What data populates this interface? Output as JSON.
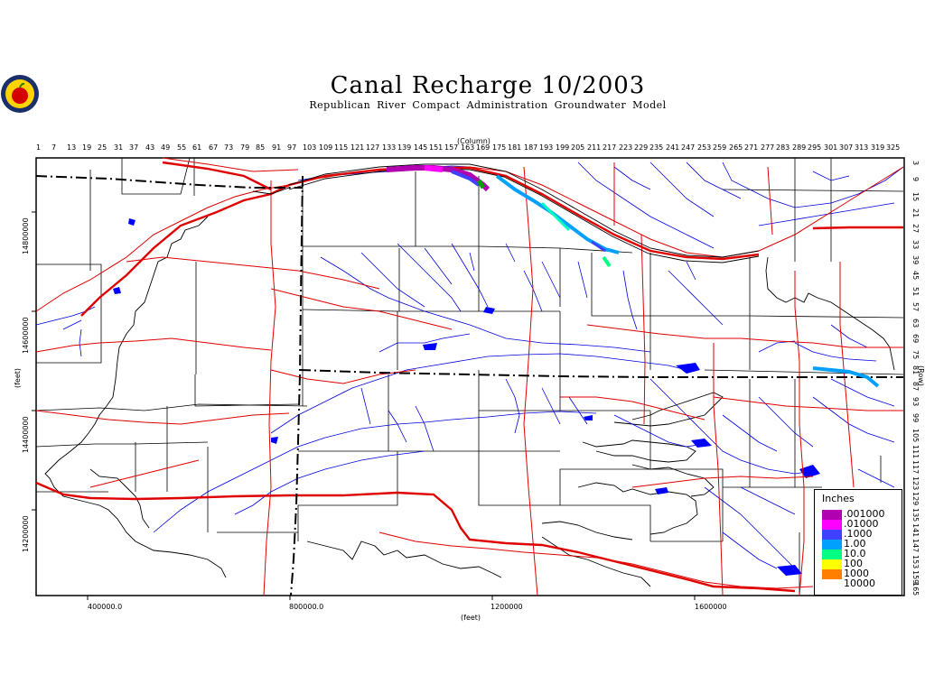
{
  "title": "Canal Recharge 10/2003",
  "subtitle": "Republican River Compact Administration Groundwater Model",
  "logo_icon": "apple-seal-logo",
  "axes": {
    "column_label": "(Column)",
    "row_label": "(Row)",
    "x_label": "(feet)",
    "y_label": "(feet)",
    "column_ticks": [
      "1",
      "7",
      "13",
      "19",
      "25",
      "31",
      "37",
      "43",
      "49",
      "55",
      "61",
      "67",
      "73",
      "79",
      "85",
      "91",
      "97",
      "103",
      "109",
      "115",
      "121",
      "127",
      "133",
      "139",
      "145",
      "151",
      "157",
      "163",
      "169",
      "175",
      "181",
      "187",
      "193",
      "199",
      "205",
      "211",
      "217",
      "223",
      "229",
      "235",
      "241",
      "247",
      "253",
      "259",
      "265",
      "271",
      "277",
      "283",
      "289",
      "295",
      "301",
      "307",
      "313",
      "319",
      "325"
    ],
    "row_ticks": [
      "3",
      "9",
      "15",
      "21",
      "27",
      "33",
      "39",
      "45",
      "51",
      "57",
      "63",
      "69",
      "75",
      "81",
      "87",
      "93",
      "99",
      "105",
      "111",
      "117",
      "123",
      "129",
      "135",
      "141",
      "147",
      "153",
      "159",
      "165"
    ],
    "x_ticks": [
      "400000.0",
      "800000.0",
      "1200000",
      "1600000"
    ],
    "y_ticks": [
      "14800000",
      "14600000",
      "14400000",
      "14200000"
    ]
  },
  "legend": {
    "title": "Inches",
    "items": [
      {
        "label": ".001000",
        "color": "#b000b0"
      },
      {
        "label": ".01000",
        "color": "#ff00ff"
      },
      {
        "label": ".1000",
        "color": "#4040ff"
      },
      {
        "label": "1.00",
        "color": "#00a0ff"
      },
      {
        "label": "10.0",
        "color": "#00ff80"
      },
      {
        "label": "100",
        "color": "#ffff00"
      },
      {
        "label": "1000",
        "color": "#ff8000"
      },
      {
        "label": "10000",
        "color": "#ffffff"
      }
    ]
  },
  "colors": {
    "roads": "#e00000",
    "streams": "#0000dd",
    "reservoirs": "#0000ff",
    "state_boundary": "#000000"
  }
}
